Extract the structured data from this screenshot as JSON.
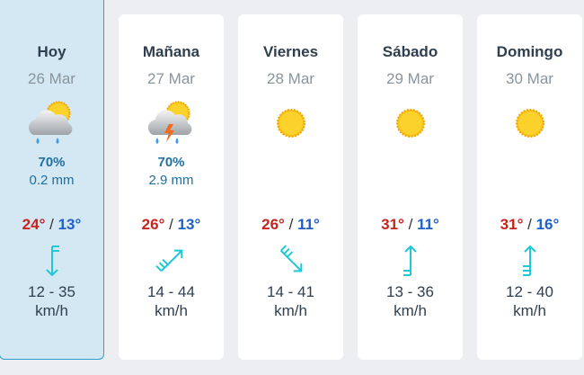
{
  "colors": {
    "max": "#c8231f",
    "min": "#1e5fc8",
    "wind": "#1ec8d6",
    "precip": "#1f6fa0",
    "active_bg": "#d3e8f3"
  },
  "separator": "/",
  "days": [
    {
      "day": "Hoy",
      "date": "26 Mar",
      "icon": "rain-cloud-sun-icon",
      "pop": "70%",
      "mm": "0.2 mm",
      "max": "24°",
      "min": "13°",
      "wind_dir_deg": 0,
      "barbs": 2,
      "speed": "12 - 35",
      "unit": "km/h",
      "active": true
    },
    {
      "day": "Mañana",
      "date": "27 Mar",
      "icon": "thunderstorm-cloud-sun-icon",
      "pop": "70%",
      "mm": "2.9 mm",
      "max": "26°",
      "min": "13°",
      "wind_dir_deg": 225,
      "barbs": 3,
      "speed": "14 - 44",
      "unit": "km/h"
    },
    {
      "day": "Viernes",
      "date": "28 Mar",
      "icon": "sun-icon",
      "pop": "",
      "mm": "",
      "max": "26°",
      "min": "11°",
      "wind_dir_deg": 315,
      "barbs": 3,
      "speed": "14 - 41",
      "unit": "km/h"
    },
    {
      "day": "Sábado",
      "date": "29 Mar",
      "icon": "sun-icon",
      "pop": "",
      "mm": "",
      "max": "31°",
      "min": "11°",
      "wind_dir_deg": 180,
      "barbs": 2,
      "speed": "13 - 36",
      "unit": "km/h"
    },
    {
      "day": "Domingo",
      "date": "30 Mar",
      "icon": "sun-icon",
      "pop": "",
      "mm": "",
      "max": "31°",
      "min": "16°",
      "wind_dir_deg": 180,
      "barbs": 3,
      "speed": "12 - 40",
      "unit": "km/h"
    }
  ]
}
